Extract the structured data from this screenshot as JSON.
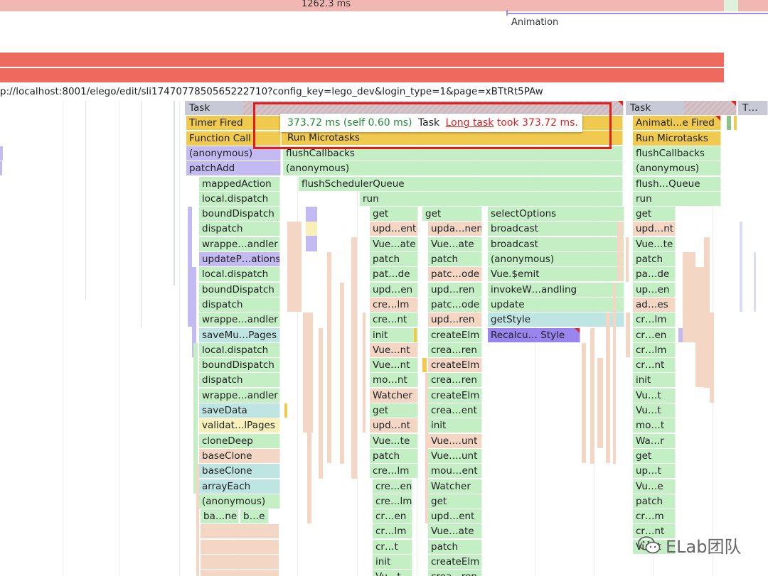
{
  "timeline": {
    "duration_label": "1262.3 ms",
    "animation_label": "Animation",
    "url": "p://localhost:8001/elego/edit/sli1747077850565222710?config_key=lego_dev&login_type=1&page=xBTtRt5PAw"
  },
  "tooltip": {
    "time": "373.72 ms (self 0.60 ms)",
    "name": "Task",
    "link": "Long task",
    "suffix": "took 373.72 ms."
  },
  "colors": {
    "task": "#c7c9d6",
    "scripting": "#f0c94f",
    "green": "#c4eec4",
    "peach": "#f3d6c3",
    "purple": "#c4baf2",
    "teal": "#bfe5e2",
    "pink": "#f1b8b3",
    "red": "#ee6a5f",
    "highlight": "#e01c1c"
  },
  "col_a": [
    "Timer Fired",
    "Function Call",
    "(anonymous)",
    "patchAdd",
    "mappedAction",
    "local.dispatch",
    "boundDispatch",
    "dispatch",
    "wrappe…andler",
    "updateP…ations",
    "local.dispatch",
    "boundDispatch",
    "dispatch",
    "wrappe…andler",
    "saveMu…Pages",
    "local.dispatch",
    "boundDispatch",
    "dispatch",
    "wrappe…andler",
    "saveData",
    "validat…lPages",
    "cloneDeep",
    "baseClone",
    "baseClone",
    "arrayEach",
    "(anonymous)",
    "ba…ne",
    "b…e"
  ],
  "col_b": [
    "Run Microtasks",
    "flushCallbacks",
    "(anonymous)",
    "flushSchedulerQueue",
    "run"
  ],
  "col_c": [
    "get",
    "upd…ent",
    "Vue…ate",
    "patch",
    "pat…de",
    "upd…en",
    "cre…lm",
    "cre…nt",
    "init",
    "Vue…nt",
    "Vue…nt",
    "mo…nt",
    "Watcher",
    "get",
    "upd…nt",
    "Vue…te",
    "patch",
    "cre…lm",
    "cre…en",
    "cre…lm",
    "cr…en",
    "cr…lm",
    "cr…t",
    "init",
    "Vu…t"
  ],
  "col_d": [
    "get",
    "upda…nent",
    "Vue…ate",
    "patch",
    "patc…ode",
    "upd…ren",
    "patc…ode",
    "upd…ren",
    "createElm",
    "crea…ren",
    "createElm",
    "crea…ren",
    "createElm",
    "crea…ent",
    "init",
    "Vue….unt",
    "Vue….unt",
    "mou…ent",
    "Watcher",
    "get",
    "upd…ent",
    "Vue…ate",
    "patch",
    "createElm",
    "crea…ren"
  ],
  "col_e": [
    "selectOptions",
    "broadcast",
    "broadcast",
    "(anonymous)",
    "Vue.$emit",
    "invokeW…andling",
    "update",
    "getStyle",
    "Recalcu… Style"
  ],
  "col_f": [
    "Animati…e Fired",
    "Run Microtasks",
    "flushCallbacks",
    "(anonymous)",
    "flush…Queue",
    "run",
    "get",
    "upd…nt",
    "Vue…te",
    "patch",
    "pa…de",
    "up…en",
    "ad…es",
    "cr…lm",
    "cr…en",
    "cr…lm",
    "cr…nt",
    "init",
    "Vu…t",
    "Vu…t",
    "mo…t",
    "Wa…r",
    "get",
    "up…t",
    "Vu…e",
    "patch",
    "cr…m",
    "cr…nt",
    "Vu…t"
  ],
  "task_labels": {
    "main": "Task",
    "right": "Task",
    "far": "T…"
  },
  "watermark": "ELab团队"
}
